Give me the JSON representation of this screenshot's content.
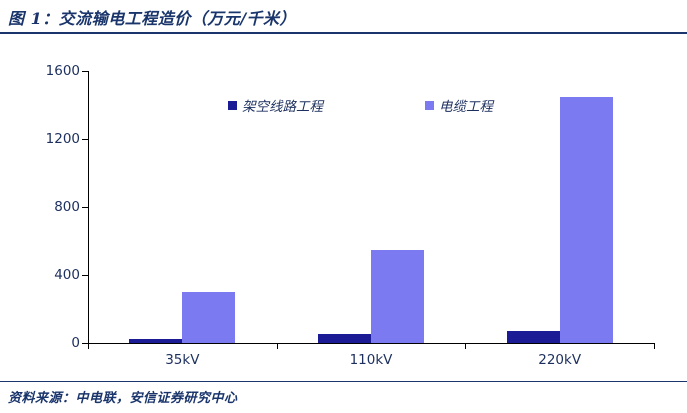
{
  "header": {
    "title": "图 1：交流输电工程造价（万元/千米）"
  },
  "footer": {
    "source": "资料来源：中电联，安信证券研究中心"
  },
  "colors": {
    "overhead_bar": "#1B1B96",
    "cable_bar": "#7B7AF0",
    "title_text": "#1A356B",
    "axis_text": "#1C2F5E",
    "axis_line": "#000000",
    "rule": "#1A356B"
  },
  "chart_data": {
    "type": "bar",
    "title": "交流输电工程造价（万元/千米）",
    "categories": [
      "35kV",
      "110kV",
      "220kV"
    ],
    "series": [
      {
        "name": "架空线路工程",
        "color": "#1B1B96",
        "values": [
          25,
          55,
          70
        ]
      },
      {
        "name": "电缆工程",
        "color": "#7B7AF0",
        "values": [
          300,
          545,
          1450
        ]
      }
    ],
    "xlabel": "",
    "ylabel": "",
    "ylim": [
      0,
      1600
    ],
    "yticks": [
      0,
      400,
      800,
      1200,
      1600
    ],
    "legend_position": "top",
    "grid": false
  }
}
